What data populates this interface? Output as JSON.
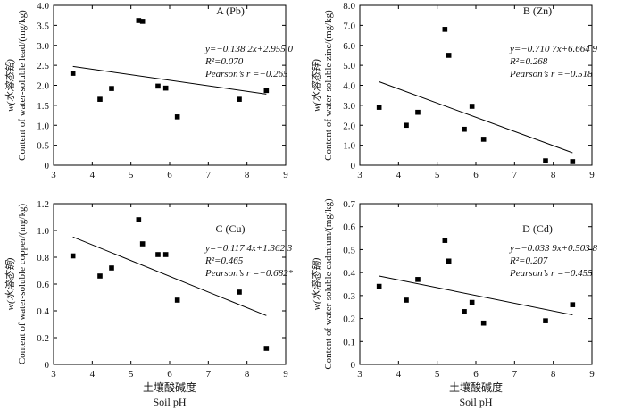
{
  "colors": {
    "axis": "#000000",
    "marker": "#000000",
    "line": "#000000",
    "background": "#ffffff"
  },
  "x_axis_titles": [
    {
      "cn": "土壤酸碱度",
      "en": "Soil pH"
    },
    {
      "cn": "土壤酸碱度",
      "en": "Soil pH"
    }
  ],
  "chart_data": [
    {
      "type": "scatter",
      "panel": "A (Pb)",
      "ylabel_cn": "w(水溶态铅)",
      "ylabel_en": "Content of water-soluble lead/(mg/kg)",
      "xlim": [
        3,
        9
      ],
      "ylim": [
        0,
        4.0
      ],
      "xticks": [
        "3",
        "4",
        "5",
        "6",
        "7",
        "8",
        "9"
      ],
      "yticks": [
        "0",
        "0.5",
        "1.0",
        "1.5",
        "2.0",
        "2.5",
        "3.0",
        "3.5",
        "4.0"
      ],
      "x": [
        3.5,
        4.2,
        4.5,
        5.2,
        5.3,
        5.7,
        5.9,
        6.2,
        7.8,
        8.5
      ],
      "y": [
        2.3,
        1.65,
        1.92,
        3.62,
        3.6,
        1.98,
        1.93,
        1.21,
        1.65,
        1.87
      ],
      "fit": {
        "slope": -0.1382,
        "intercept": 2.955,
        "x_range": [
          3.5,
          8.5
        ]
      },
      "equation": "y=−0.138 2x+2.955 0",
      "r2": "R²=0.070",
      "pearson": "Pearson’s r =−0.265"
    },
    {
      "type": "scatter",
      "panel": "B (Zn)",
      "ylabel_cn": "w(水溶态锌)",
      "ylabel_en": "Content of water-soluble zinc/(mg/kg)",
      "xlim": [
        3,
        9
      ],
      "ylim": [
        0,
        8.0
      ],
      "xticks": [
        "3",
        "4",
        "5",
        "6",
        "7",
        "8",
        "9"
      ],
      "yticks": [
        "0",
        "1.0",
        "2.0",
        "3.0",
        "4.0",
        "5.0",
        "6.0",
        "7.0",
        "8.0"
      ],
      "x": [
        3.5,
        4.2,
        4.5,
        5.2,
        5.3,
        5.7,
        5.9,
        6.2,
        7.8,
        8.5
      ],
      "y": [
        2.9,
        2.0,
        2.65,
        6.8,
        5.5,
        1.8,
        2.95,
        1.3,
        0.22,
        0.18
      ],
      "fit": {
        "slope": -0.7107,
        "intercept": 6.6649,
        "x_range": [
          3.5,
          8.5
        ]
      },
      "equation": "y=−0.710 7x+6.664 9",
      "r2": "R²=0.268",
      "pearson": "Pearson’s r =−0.518"
    },
    {
      "type": "scatter",
      "panel": "C (Cu)",
      "ylabel_cn": "w(水溶态铜)",
      "ylabel_en": "Content of water-soluble copper/(mg/kg)",
      "xlim": [
        3,
        9
      ],
      "ylim": [
        0,
        1.2
      ],
      "xticks": [
        "3",
        "4",
        "5",
        "6",
        "7",
        "8",
        "9"
      ],
      "yticks": [
        "0",
        "0.2",
        "0.4",
        "0.6",
        "0.8",
        "1.0",
        "1.2"
      ],
      "x": [
        3.5,
        4.2,
        4.5,
        5.2,
        5.3,
        5.7,
        5.9,
        6.2,
        7.8,
        8.5
      ],
      "y": [
        0.81,
        0.66,
        0.72,
        1.08,
        0.9,
        0.82,
        0.82,
        0.48,
        0.54,
        0.12
      ],
      "fit": {
        "slope": -0.1174,
        "intercept": 1.3623,
        "x_range": [
          3.5,
          8.5
        ]
      },
      "equation": "y=−0.117 4x+1.362 3",
      "r2": "R²=0.465",
      "pearson": "Pearson’s r =−0.682*"
    },
    {
      "type": "scatter",
      "panel": "D (Cd)",
      "ylabel_cn": "w(水溶态镉)",
      "ylabel_en": "Content of water-soluble cadmium/(mg/kg)",
      "xlim": [
        3,
        9
      ],
      "ylim": [
        0,
        0.7
      ],
      "xticks": [
        "3",
        "4",
        "5",
        "6",
        "7",
        "8",
        "9"
      ],
      "yticks": [
        "0",
        "0.1",
        "0.2",
        "0.3",
        "0.4",
        "0.5",
        "0.6",
        "0.7"
      ],
      "x": [
        3.5,
        4.2,
        4.5,
        5.2,
        5.3,
        5.7,
        5.9,
        6.2,
        7.8,
        8.5
      ],
      "y": [
        0.34,
        0.28,
        0.37,
        0.54,
        0.45,
        0.23,
        0.27,
        0.18,
        0.19,
        0.26
      ],
      "fit": {
        "slope": -0.0339,
        "intercept": 0.5038,
        "x_range": [
          3.5,
          8.5
        ]
      },
      "equation": "y=−0.033 9x+0.503 8",
      "r2": "R²=0.207",
      "pearson": "Pearson’s r =−0.455"
    }
  ]
}
